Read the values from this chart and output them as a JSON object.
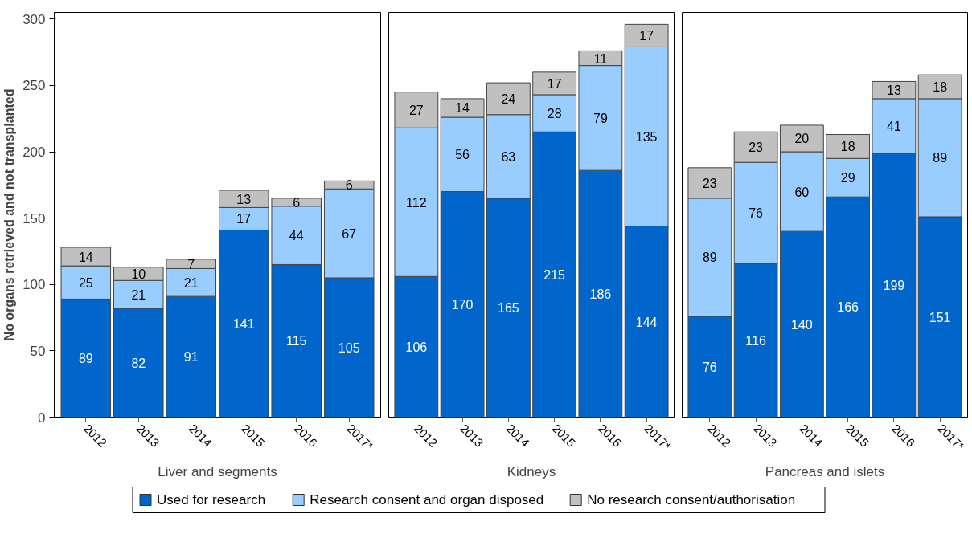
{
  "chart_data": [
    {
      "type": "bar",
      "stacked": true,
      "xlabel": "Liver and segments",
      "ylabel": "No organs retrieved and not transplanted",
      "categories": [
        "2012",
        "2013",
        "2014",
        "2015",
        "2016",
        "2017*"
      ],
      "ylim": [
        0,
        305
      ],
      "yticks": [
        0,
        50,
        100,
        150,
        200,
        250,
        300
      ],
      "data_labels": true,
      "grid": false,
      "legend": "bottom",
      "series": [
        {
          "name": "Used for research",
          "color": "#0066cc",
          "values": [
            89,
            82,
            91,
            141,
            115,
            105
          ]
        },
        {
          "name": "Research consent and organ disposed",
          "color": "#99ccff",
          "values": [
            25,
            21,
            21,
            17,
            44,
            67
          ]
        },
        {
          "name": "No research consent/authorisation",
          "color": "#c0c0c0",
          "values": [
            14,
            10,
            7,
            13,
            6,
            6
          ]
        }
      ]
    },
    {
      "type": "bar",
      "stacked": true,
      "xlabel": "Kidneys",
      "categories": [
        "2012",
        "2013",
        "2014",
        "2015",
        "2016",
        "2017*"
      ],
      "ylim": [
        0,
        305
      ],
      "tick_labels": "x",
      "data_labels": true,
      "grid": false,
      "series": [
        {
          "color": "#0066cc",
          "values": [
            106,
            170,
            165,
            215,
            186,
            144
          ]
        },
        {
          "color": "#99ccff",
          "values": [
            112,
            56,
            63,
            28,
            79,
            135
          ]
        },
        {
          "color": "#c0c0c0",
          "values": [
            27,
            14,
            24,
            17,
            11,
            17
          ]
        }
      ]
    },
    {
      "type": "bar",
      "stacked": true,
      "xlabel": "Pancreas and islets",
      "categories": [
        "2012",
        "2013",
        "2014",
        "2015",
        "2016",
        "2017*"
      ],
      "ylim": [
        0,
        305
      ],
      "tick_labels": "x",
      "data_labels": true,
      "grid": false,
      "series": [
        {
          "color": "#0066cc",
          "values": [
            76,
            116,
            140,
            166,
            199,
            151
          ]
        },
        {
          "color": "#99ccff",
          "values": [
            89,
            76,
            60,
            29,
            41,
            89
          ]
        },
        {
          "color": "#c0c0c0",
          "values": [
            23,
            23,
            20,
            18,
            13,
            18
          ]
        }
      ]
    }
  ]
}
